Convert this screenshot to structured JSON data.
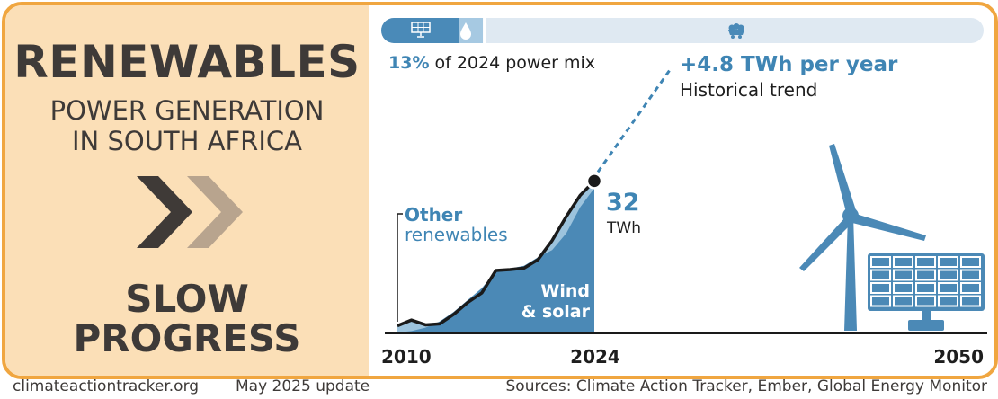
{
  "header": {
    "title": "RENEWABLES",
    "subtitle_line1": "POWER GENERATION",
    "subtitle_line2": "IN SOUTH AFRICA",
    "rating_line1": "SLOW",
    "rating_line2": "PROGRESS"
  },
  "mix_bar": {
    "renewable_share_percent": 13,
    "share_value": "13%",
    "share_text": "of 2024 power mix",
    "icons": [
      "solar-panel-icon",
      "water-drop-icon",
      "coal-cart-icon"
    ]
  },
  "annotations": {
    "trend_value": "+4.8 TWh per year",
    "trend_label": "Historical trend",
    "current_value": "32",
    "current_unit": "TWh",
    "other_line1": "Other",
    "other_line2": "renewables",
    "wind_line1": "Wind",
    "wind_line2": "& solar"
  },
  "chart_data": {
    "type": "area",
    "unit": "TWh",
    "x_ticks": [
      "2010",
      "2024",
      "2050"
    ],
    "xlim": [
      2010,
      2050
    ],
    "x": [
      2010,
      2011,
      2012,
      2013,
      2014,
      2015,
      2016,
      2017,
      2018,
      2019,
      2020,
      2021,
      2022,
      2023,
      2024
    ],
    "series": [
      {
        "name": "Wind & solar",
        "values": [
          0.2,
          0.5,
          1.2,
          2.5,
          4.5,
          7.0,
          9.5,
          13.0,
          13.6,
          14.2,
          16.0,
          17.5,
          21.0,
          26.5,
          30.5
        ]
      },
      {
        "name": "Other renewables",
        "values": [
          1.6,
          2.8,
          1.8,
          2.0,
          4.0,
          6.5,
          8.5,
          13.2,
          13.4,
          13.7,
          15.5,
          19.5,
          24.5,
          29.0,
          32.0
        ]
      }
    ],
    "trend": {
      "label": "Historical trend",
      "slope_per_year": 4.8,
      "from_year": 2024,
      "from_value": 32
    },
    "colors": {
      "wind_solar": "#4b89b6",
      "other": "#9cc3dd",
      "total_line": "#1a1a1a",
      "accent": "#3f85b4"
    }
  },
  "footer": {
    "site": "climateactiontracker.org",
    "update": "May 2025 update",
    "sources": "Sources: Climate Action Tracker, Ember, Global Energy Monitor"
  }
}
